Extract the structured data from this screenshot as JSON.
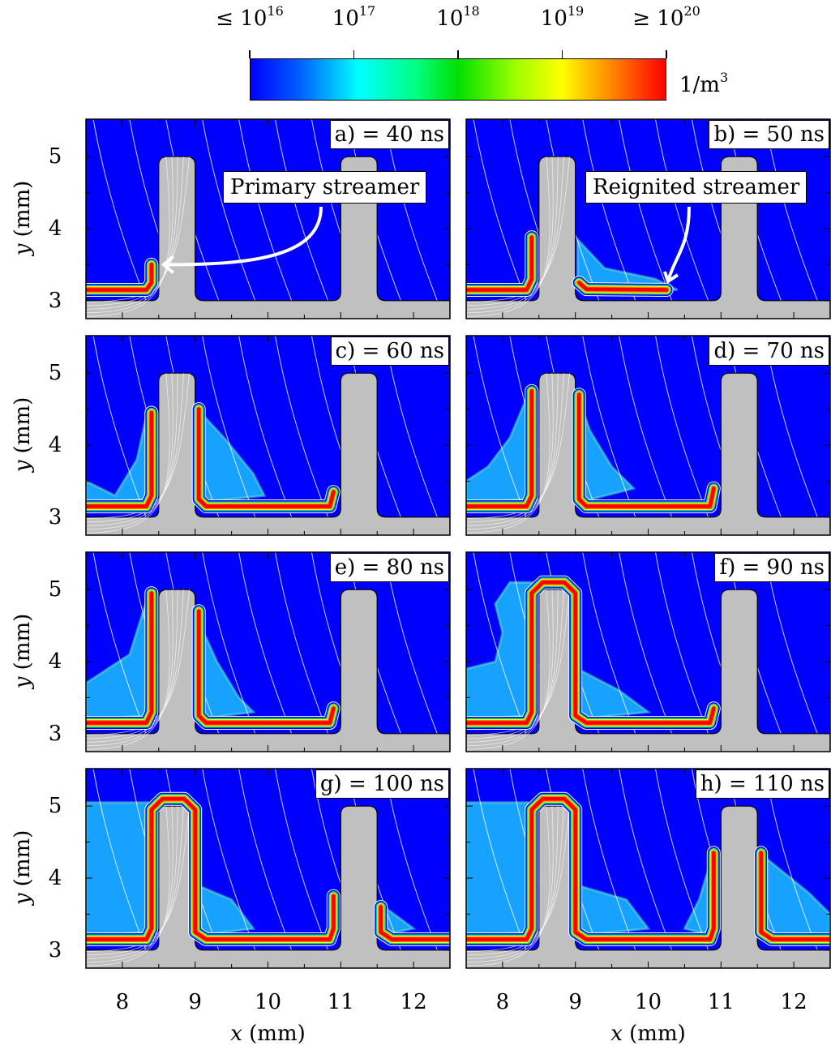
{
  "chart_data": {
    "type": "heatmap",
    "quantity_unit": "1/m",
    "quantity_unit_exp": "3",
    "colorbar": {
      "scale": "log",
      "range": [
        1e+16,
        1e+20
      ],
      "ticks": [
        {
          "prefix": "≤ 10",
          "exp": "16"
        },
        {
          "prefix": "10",
          "exp": "17"
        },
        {
          "prefix": "10",
          "exp": "18"
        },
        {
          "prefix": "10",
          "exp": "19"
        },
        {
          "prefix": "≥ 10",
          "exp": "20"
        }
      ],
      "colors": [
        "#0000ff",
        "#00ffff",
        "#00e000",
        "#ffff00",
        "#ff0000"
      ]
    },
    "xlabel_var": "x",
    "xlabel_unit": " (mm)",
    "ylabel_var": "y",
    "ylabel_unit": " (mm)",
    "xlim": [
      7.5,
      12.5
    ],
    "ylim": [
      2.75,
      5.52
    ],
    "xticks": [
      "8",
      "9",
      "10",
      "11",
      "12"
    ],
    "yticks": [
      "3",
      "4",
      "5"
    ],
    "panels": [
      {
        "label": "a) = 40 ns",
        "time_ns": 40,
        "channels": [
          [
            [
              7.5,
              3.15
            ],
            [
              8.33,
              3.15
            ],
            [
              8.4,
              3.25
            ],
            [
              8.4,
              3.5
            ]
          ]
        ],
        "glow": [],
        "annotation": {
          "text": "Primary streamer",
          "arrow_to": [
            8.5,
            3.5
          ]
        }
      },
      {
        "label": "b) = 50 ns",
        "time_ns": 50,
        "channels": [
          [
            [
              7.5,
              3.15
            ],
            [
              8.33,
              3.15
            ],
            [
              8.4,
              3.3
            ],
            [
              8.4,
              3.88
            ]
          ],
          [
            [
              9.05,
              3.25
            ],
            [
              9.15,
              3.16
            ],
            [
              10.25,
              3.15
            ]
          ]
        ],
        "glow": [
          [
            [
              9.03,
              3.85
            ],
            [
              9.03,
              3.2
            ],
            [
              10.4,
              3.15
            ],
            [
              10.1,
              3.3
            ],
            [
              9.4,
              3.45
            ]
          ]
        ],
        "annotation": {
          "text": "Reignited streamer",
          "arrow_to": [
            10.25,
            3.2
          ]
        }
      },
      {
        "label": "c) = 60 ns",
        "time_ns": 60,
        "channels": [
          [
            [
              7.5,
              3.15
            ],
            [
              8.33,
              3.15
            ],
            [
              8.4,
              3.3
            ],
            [
              8.4,
              4.45
            ]
          ],
          [
            [
              9.05,
              4.5
            ],
            [
              9.05,
              3.25
            ],
            [
              9.15,
              3.15
            ],
            [
              10.85,
              3.15
            ],
            [
              10.9,
              3.35
            ]
          ]
        ],
        "glow": [
          [
            [
              7.5,
              3.5
            ],
            [
              7.9,
              3.3
            ],
            [
              8.2,
              3.8
            ],
            [
              8.35,
              4.5
            ],
            [
              8.35,
              3.25
            ],
            [
              7.5,
              3.2
            ]
          ],
          [
            [
              9.03,
              4.5
            ],
            [
              9.4,
              4.1
            ],
            [
              9.8,
              3.6
            ],
            [
              9.95,
              3.3
            ],
            [
              9.03,
              3.2
            ]
          ]
        ]
      },
      {
        "label": "d) = 70 ns",
        "time_ns": 70,
        "channels": [
          [
            [
              7.5,
              3.15
            ],
            [
              8.33,
              3.15
            ],
            [
              8.4,
              3.3
            ],
            [
              8.4,
              4.75
            ]
          ],
          [
            [
              9.05,
              4.7
            ],
            [
              9.05,
              3.25
            ],
            [
              9.15,
              3.15
            ],
            [
              10.85,
              3.15
            ],
            [
              10.9,
              3.4
            ]
          ]
        ],
        "glow": [
          [
            [
              7.5,
              3.5
            ],
            [
              7.8,
              3.7
            ],
            [
              8.1,
              4.1
            ],
            [
              8.35,
              4.7
            ],
            [
              8.35,
              3.25
            ],
            [
              7.5,
              3.2
            ]
          ],
          [
            [
              9.03,
              4.7
            ],
            [
              9.2,
              4.2
            ],
            [
              9.5,
              3.7
            ],
            [
              9.8,
              3.4
            ],
            [
              9.03,
              3.2
            ]
          ]
        ]
      },
      {
        "label": "e) = 80 ns",
        "time_ns": 80,
        "channels": [
          [
            [
              7.5,
              3.15
            ],
            [
              8.33,
              3.15
            ],
            [
              8.4,
              3.3
            ],
            [
              8.4,
              4.95
            ]
          ],
          [
            [
              9.05,
              4.7
            ],
            [
              9.05,
              3.25
            ],
            [
              9.15,
              3.15
            ],
            [
              10.85,
              3.15
            ],
            [
              10.9,
              3.35
            ]
          ]
        ],
        "glow": [
          [
            [
              7.5,
              3.7
            ],
            [
              7.8,
              3.9
            ],
            [
              8.1,
              4.1
            ],
            [
              8.35,
              4.9
            ],
            [
              8.35,
              3.25
            ],
            [
              7.5,
              3.2
            ]
          ],
          [
            [
              9.03,
              4.6
            ],
            [
              9.3,
              4.0
            ],
            [
              9.6,
              3.5
            ],
            [
              9.8,
              3.3
            ],
            [
              9.03,
              3.2
            ]
          ]
        ]
      },
      {
        "label": "f) = 90 ns",
        "time_ns": 90,
        "channels": [
          [
            [
              7.5,
              3.15
            ],
            [
              8.33,
              3.15
            ],
            [
              8.4,
              3.3
            ],
            [
              8.4,
              4.95
            ],
            [
              8.55,
              5.1
            ],
            [
              8.85,
              5.1
            ],
            [
              9.0,
              4.95
            ],
            [
              9.0,
              3.25
            ],
            [
              9.15,
              3.15
            ],
            [
              10.85,
              3.15
            ],
            [
              10.9,
              3.35
            ]
          ]
        ],
        "glow": [
          [
            [
              7.5,
              3.9
            ],
            [
              7.9,
              4.0
            ],
            [
              8.0,
              4.4
            ],
            [
              7.9,
              4.8
            ],
            [
              8.1,
              5.1
            ],
            [
              8.4,
              5.1
            ],
            [
              8.35,
              3.25
            ],
            [
              7.5,
              3.2
            ]
          ],
          [
            [
              9.03,
              3.9
            ],
            [
              9.6,
              3.6
            ],
            [
              10.0,
              3.3
            ],
            [
              9.03,
              3.2
            ]
          ]
        ]
      },
      {
        "label": "g) = 100 ns",
        "time_ns": 100,
        "channels": [
          [
            [
              7.5,
              3.15
            ],
            [
              8.33,
              3.15
            ],
            [
              8.4,
              3.3
            ],
            [
              8.4,
              4.95
            ],
            [
              8.55,
              5.1
            ],
            [
              8.85,
              5.1
            ],
            [
              9.0,
              4.95
            ],
            [
              9.0,
              3.25
            ],
            [
              9.15,
              3.15
            ],
            [
              10.85,
              3.15
            ],
            [
              10.9,
              3.3
            ],
            [
              10.9,
              3.75
            ]
          ],
          [
            [
              11.55,
              3.6
            ],
            [
              11.55,
              3.25
            ],
            [
              11.7,
              3.15
            ],
            [
              12.5,
              3.15
            ]
          ]
        ],
        "glow": [
          [
            [
              7.5,
              3.9
            ],
            [
              7.5,
              5.05
            ],
            [
              8.35,
              5.05
            ],
            [
              8.35,
              3.25
            ],
            [
              7.5,
              3.2
            ]
          ],
          [
            [
              9.03,
              3.9
            ],
            [
              9.5,
              3.7
            ],
            [
              9.8,
              3.3
            ],
            [
              9.03,
              3.2
            ]
          ],
          [
            [
              11.53,
              3.65
            ],
            [
              12.0,
              3.3
            ],
            [
              11.53,
              3.2
            ]
          ]
        ]
      },
      {
        "label": "h) = 110 ns",
        "time_ns": 110,
        "channels": [
          [
            [
              7.5,
              3.15
            ],
            [
              8.33,
              3.15
            ],
            [
              8.4,
              3.3
            ],
            [
              8.4,
              4.95
            ],
            [
              8.55,
              5.1
            ],
            [
              8.85,
              5.1
            ],
            [
              9.0,
              4.95
            ],
            [
              9.0,
              3.25
            ],
            [
              9.15,
              3.15
            ],
            [
              10.85,
              3.15
            ],
            [
              10.9,
              3.3
            ],
            [
              10.9,
              4.35
            ]
          ],
          [
            [
              11.55,
              4.35
            ],
            [
              11.55,
              3.25
            ],
            [
              11.7,
              3.15
            ],
            [
              12.5,
              3.15
            ]
          ]
        ],
        "glow": [
          [
            [
              7.5,
              3.9
            ],
            [
              7.5,
              5.05
            ],
            [
              8.35,
              5.05
            ],
            [
              8.35,
              3.25
            ],
            [
              7.5,
              3.2
            ]
          ],
          [
            [
              9.03,
              3.9
            ],
            [
              9.7,
              3.7
            ],
            [
              10.0,
              3.3
            ],
            [
              9.03,
              3.2
            ]
          ],
          [
            [
              10.5,
              3.3
            ],
            [
              10.7,
              3.7
            ],
            [
              10.88,
              4.3
            ],
            [
              10.88,
              3.2
            ]
          ],
          [
            [
              11.53,
              4.35
            ],
            [
              12.2,
              3.8
            ],
            [
              12.5,
              3.5
            ],
            [
              12.5,
              3.2
            ],
            [
              11.53,
              3.2
            ]
          ]
        ]
      }
    ]
  }
}
